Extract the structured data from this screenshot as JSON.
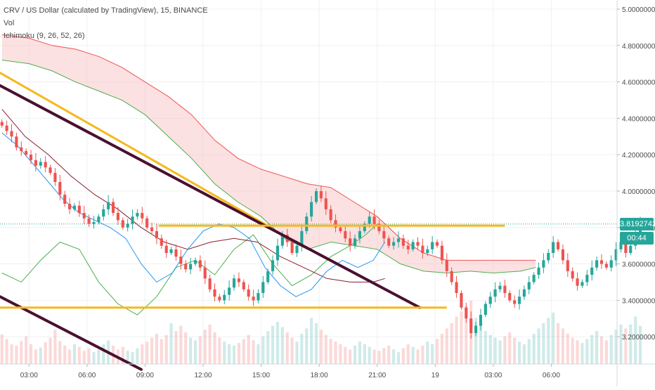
{
  "legend": {
    "title": "CRV / US Dollar (calculated by TradingView), 15, BINANCE",
    "vol_label": "Vol",
    "ichimoku_label": "Ichimoku (9, 26, 52, 26)"
  },
  "last_price_label": "3.8192742",
  "countdown_label": "00:44",
  "colors": {
    "up": "#26a69a",
    "down": "#ef5350",
    "tenkan": "#2196f3",
    "kijun": "#8b1e2d",
    "span_a": "#4caf50",
    "span_b": "#ef5350",
    "cloud_bearish": "#f8c9c8",
    "trendline_dark": "#4a1030",
    "trendline_yellow": "#f5b91c",
    "last_price_badge": "#26a69a",
    "countdown_badge": "#26a69a"
  },
  "chart_data": {
    "type": "candlestick",
    "symbol": "CRV / US Dollar (calculated by TradingView)",
    "interval": "15",
    "exchange": "BINANCE",
    "x_ticks": [
      "03:00",
      "06:00",
      "09:00",
      "12:00",
      "15:00",
      "18:00",
      "21:00",
      "19",
      "03:00",
      "06:00"
    ],
    "x_tick_hours": [
      3,
      6,
      9,
      12,
      15,
      18,
      21,
      24,
      27,
      30
    ],
    "y_ticks": [
      "3.2000000",
      "3.4000000",
      "3.6000000",
      "3.8000000",
      "4.0000000",
      "4.2000000",
      "4.4000000",
      "4.6000000",
      "4.8000000",
      "5.0000000"
    ],
    "ylim": [
      3.05,
      5.05
    ],
    "xlim_hours": [
      1.5,
      33.4
    ],
    "last_price": 3.8192742,
    "candle_interval_hours": 0.25,
    "closes": [
      4.36,
      4.33,
      4.3,
      4.24,
      4.22,
      4.2,
      4.17,
      4.14,
      4.16,
      4.13,
      4.1,
      4.05,
      3.98,
      3.93,
      3.9,
      3.92,
      3.88,
      3.85,
      3.82,
      3.83,
      3.86,
      3.9,
      3.94,
      3.88,
      3.84,
      3.8,
      3.82,
      3.86,
      3.88,
      3.85,
      3.8,
      3.78,
      3.74,
      3.7,
      3.66,
      3.68,
      3.64,
      3.6,
      3.57,
      3.6,
      3.62,
      3.58,
      3.52,
      3.46,
      3.42,
      3.4,
      3.43,
      3.47,
      3.52,
      3.5,
      3.46,
      3.42,
      3.4,
      3.44,
      3.5,
      3.56,
      3.62,
      3.7,
      3.76,
      3.72,
      3.66,
      3.7,
      3.78,
      3.86,
      3.94,
      4.0,
      3.96,
      3.9,
      3.84,
      3.8,
      3.78,
      3.74,
      3.7,
      3.74,
      3.78,
      3.82,
      3.86,
      3.82,
      3.78,
      3.74,
      3.7,
      3.72,
      3.74,
      3.7,
      3.68,
      3.72,
      3.7,
      3.66,
      3.68,
      3.72,
      3.7,
      3.62,
      3.56,
      3.5,
      3.44,
      3.36,
      3.3,
      3.22,
      3.26,
      3.32,
      3.38,
      3.42,
      3.46,
      3.48,
      3.44,
      3.4,
      3.38,
      3.42,
      3.46,
      3.5,
      3.54,
      3.58,
      3.62,
      3.66,
      3.72,
      3.68,
      3.62,
      3.56,
      3.52,
      3.48,
      3.5,
      3.54,
      3.58,
      3.62,
      3.6,
      3.58,
      3.62,
      3.68,
      3.72,
      3.66,
      3.7,
      3.76,
      3.82
    ],
    "volumes": [
      0.45,
      0.38,
      0.3,
      0.28,
      0.35,
      0.42,
      0.3,
      0.22,
      0.25,
      0.33,
      0.4,
      0.52,
      0.35,
      0.28,
      0.22,
      0.3,
      0.26,
      0.2,
      0.24,
      0.18,
      0.22,
      0.3,
      0.36,
      0.28,
      0.22,
      0.26,
      0.2,
      0.18,
      0.24,
      0.3,
      0.34,
      0.4,
      0.46,
      0.38,
      0.44,
      0.62,
      0.5,
      0.58,
      0.48,
      0.4,
      0.36,
      0.42,
      0.52,
      0.6,
      0.48,
      0.4,
      0.34,
      0.3,
      0.28,
      0.32,
      0.38,
      0.44,
      0.36,
      0.3,
      0.42,
      0.5,
      0.58,
      0.64,
      0.56,
      0.48,
      0.4,
      0.34,
      0.46,
      0.54,
      0.7,
      0.62,
      0.52,
      0.44,
      0.38,
      0.34,
      0.3,
      0.26,
      0.22,
      0.28,
      0.34,
      0.3,
      0.26,
      0.22,
      0.2,
      0.24,
      0.28,
      0.22,
      0.18,
      0.24,
      0.3,
      0.26,
      0.22,
      0.28,
      0.34,
      0.3,
      0.38,
      0.46,
      0.54,
      0.62,
      0.72,
      0.8,
      0.88,
      0.96,
      0.7,
      0.58,
      0.5,
      0.44,
      0.4,
      0.36,
      0.42,
      0.48,
      0.4,
      0.34,
      0.3,
      0.38,
      0.46,
      0.54,
      0.62,
      0.7,
      0.78,
      0.62,
      0.54,
      0.46,
      0.4,
      0.36,
      0.32,
      0.38,
      0.44,
      0.5,
      0.42,
      0.36,
      0.44,
      0.52,
      0.6,
      0.54,
      0.6,
      0.72,
      0.58
    ],
    "tenkan": [
      [
        1.6,
        4.32
      ],
      [
        2.4,
        4.25
      ],
      [
        3.2,
        4.15
      ],
      [
        4.0,
        4.05
      ],
      [
        4.8,
        3.95
      ],
      [
        5.6,
        3.88
      ],
      [
        6.4,
        3.84
      ],
      [
        7.2,
        3.8
      ],
      [
        8.0,
        3.74
      ],
      [
        8.8,
        3.6
      ],
      [
        9.6,
        3.5
      ],
      [
        10.4,
        3.55
      ],
      [
        11.2,
        3.68
      ],
      [
        12.0,
        3.78
      ],
      [
        12.8,
        3.82
      ],
      [
        13.6,
        3.8
      ],
      [
        14.4,
        3.74
      ],
      [
        15.2,
        3.58
      ],
      [
        16.0,
        3.48
      ],
      [
        16.8,
        3.42
      ],
      [
        17.6,
        3.46
      ],
      [
        18.4,
        3.56
      ],
      [
        19.2,
        3.62
      ],
      [
        20.0,
        3.58
      ],
      [
        20.8,
        3.62
      ],
      [
        21.4,
        3.72
      ]
    ],
    "kijun": [
      [
        1.6,
        4.45
      ],
      [
        2.8,
        4.3
      ],
      [
        4.0,
        4.2
      ],
      [
        5.2,
        4.08
      ],
      [
        6.4,
        3.98
      ],
      [
        7.6,
        3.9
      ],
      [
        8.8,
        3.8
      ],
      [
        10.0,
        3.72
      ],
      [
        11.2,
        3.68
      ],
      [
        12.4,
        3.72
      ],
      [
        13.6,
        3.74
      ],
      [
        14.8,
        3.72
      ],
      [
        16.0,
        3.64
      ],
      [
        17.2,
        3.58
      ],
      [
        18.4,
        3.52
      ],
      [
        19.6,
        3.5
      ],
      [
        20.8,
        3.5
      ],
      [
        21.4,
        3.52
      ]
    ],
    "chikou": [
      [
        1.6,
        3.55
      ],
      [
        2.6,
        3.5
      ],
      [
        3.6,
        3.62
      ],
      [
        4.6,
        3.72
      ],
      [
        5.6,
        3.68
      ],
      [
        6.6,
        3.5
      ],
      [
        7.6,
        3.38
      ],
      [
        8.6,
        3.32
      ],
      [
        9.6,
        3.42
      ],
      [
        10.6,
        3.58
      ],
      [
        11.6,
        3.62
      ],
      [
        12.6,
        3.54
      ],
      [
        13.6,
        3.68
      ],
      [
        14.6,
        3.76
      ],
      [
        15.6,
        3.6
      ],
      [
        16.6,
        3.48
      ],
      [
        17.6,
        3.54
      ],
      [
        18.6,
        3.64
      ],
      [
        19.6,
        3.7
      ],
      [
        20.4,
        3.76
      ],
      [
        21.0,
        3.82
      ]
    ],
    "span_a": [
      [
        1.6,
        4.72
      ],
      [
        3.0,
        4.7
      ],
      [
        4.2,
        4.66
      ],
      [
        5.4,
        4.6
      ],
      [
        6.6,
        4.55
      ],
      [
        7.8,
        4.5
      ],
      [
        9.0,
        4.42
      ],
      [
        10.2,
        4.3
      ],
      [
        11.4,
        4.18
      ],
      [
        12.6,
        4.04
      ],
      [
        13.8,
        3.94
      ],
      [
        15.0,
        3.86
      ],
      [
        16.2,
        3.74
      ],
      [
        17.4,
        3.68
      ],
      [
        18.6,
        3.72
      ],
      [
        19.8,
        3.7
      ],
      [
        21.0,
        3.68
      ],
      [
        22.2,
        3.6
      ],
      [
        23.4,
        3.56
      ],
      [
        24.6,
        3.55
      ],
      [
        25.8,
        3.56
      ],
      [
        27.0,
        3.55
      ],
      [
        28.4,
        3.56
      ],
      [
        29.2,
        3.58
      ]
    ],
    "span_b": [
      [
        1.6,
        4.86
      ],
      [
        3.0,
        4.84
      ],
      [
        4.2,
        4.8
      ],
      [
        5.4,
        4.78
      ],
      [
        6.6,
        4.74
      ],
      [
        7.8,
        4.68
      ],
      [
        9.0,
        4.6
      ],
      [
        10.2,
        4.52
      ],
      [
        11.4,
        4.42
      ],
      [
        12.6,
        4.28
      ],
      [
        13.8,
        4.18
      ],
      [
        15.0,
        4.12
      ],
      [
        16.2,
        4.08
      ],
      [
        17.4,
        4.04
      ],
      [
        18.6,
        4.02
      ],
      [
        19.8,
        3.94
      ],
      [
        21.0,
        3.86
      ],
      [
        22.2,
        3.74
      ],
      [
        23.4,
        3.66
      ],
      [
        24.6,
        3.62
      ],
      [
        25.8,
        3.62
      ],
      [
        27.0,
        3.62
      ],
      [
        28.4,
        3.62
      ],
      [
        29.2,
        3.62
      ]
    ],
    "trendlines": [
      {
        "color": "yellow",
        "points": [
          [
            1.5,
            4.65
          ],
          [
            15.5,
            3.8
          ]
        ]
      },
      {
        "color": "dark",
        "points": [
          [
            1.5,
            4.58
          ],
          [
            23.2,
            3.36
          ]
        ]
      },
      {
        "color": "dark",
        "points": [
          [
            1.5,
            3.42
          ],
          [
            8.8,
            3.02
          ]
        ]
      }
    ],
    "horizontal_lines": [
      {
        "color": "yellow",
        "y": 3.81,
        "x_range": [
          9.7,
          27.6
        ]
      },
      {
        "color": "yellow",
        "y": 3.36,
        "x_range": [
          1.5,
          24.6
        ]
      }
    ]
  }
}
